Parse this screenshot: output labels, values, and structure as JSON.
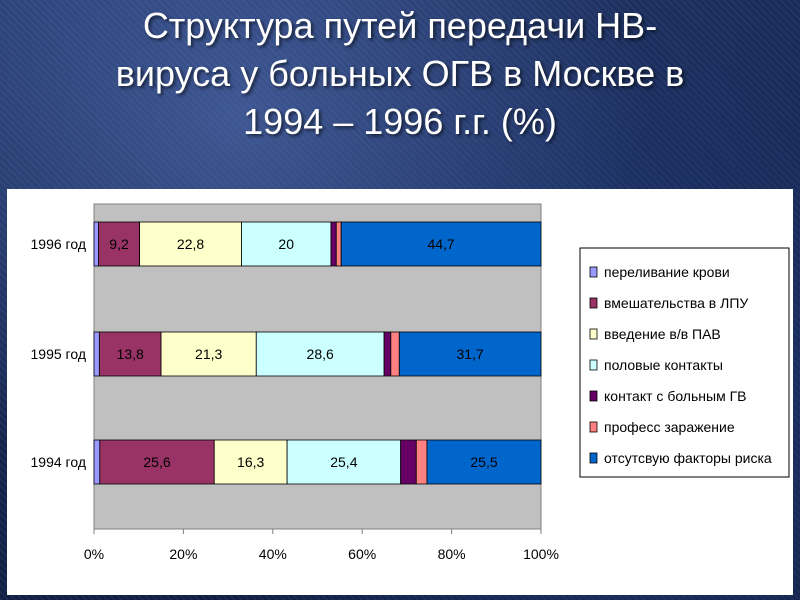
{
  "slide": {
    "title_lines": [
      "Структура путей передачи НВ-",
      "вируса у больных ОГВ в Москве в",
      "1994 – 1996 г.г. (%)"
    ]
  },
  "chart_data": {
    "type": "bar",
    "orientation": "horizontal",
    "stacked": "percent",
    "categories": [
      "1996 год",
      "1995 год",
      "1994 год"
    ],
    "series": [
      {
        "name": "переливание крови",
        "color": "#9999ff",
        "values": [
          1.0,
          1.2,
          1.3
        ],
        "labels": [
          "",
          "",
          ""
        ]
      },
      {
        "name": "вмешательства в ЛПУ",
        "color": "#993366",
        "values": [
          9.2,
          13.8,
          25.6
        ],
        "labels": [
          "9,2",
          "13,8",
          "25,6"
        ]
      },
      {
        "name": "введение в/в ПАВ",
        "color": "#ffffcc",
        "values": [
          22.8,
          21.3,
          16.3
        ],
        "labels": [
          "22,8",
          "21,3",
          "16,3"
        ]
      },
      {
        "name": "половые контакты",
        "color": "#ccffff",
        "values": [
          20,
          28.6,
          25.4
        ],
        "labels": [
          "20",
          "28,6",
          "25,4"
        ]
      },
      {
        "name": "контакт с больным ГВ",
        "color": "#660066",
        "values": [
          1.2,
          1.5,
          3.5
        ],
        "labels": [
          "",
          "",
          ""
        ]
      },
      {
        "name": "професс заражение",
        "color": "#ff8080",
        "values": [
          1.1,
          1.9,
          2.4
        ],
        "labels": [
          "",
          "",
          ""
        ]
      },
      {
        "name": "отсутсвую факторы риска",
        "color": "#0066cc",
        "values": [
          44.7,
          31.7,
          25.5
        ],
        "labels": [
          "44,7",
          "31,7",
          "25,5"
        ]
      }
    ],
    "xticks": [
      "0%",
      "20%",
      "40%",
      "60%",
      "80%",
      "100%"
    ],
    "xlim": [
      0,
      100
    ],
    "grid": false,
    "legend_position": "right",
    "plot_background": "#c0c0c0"
  }
}
